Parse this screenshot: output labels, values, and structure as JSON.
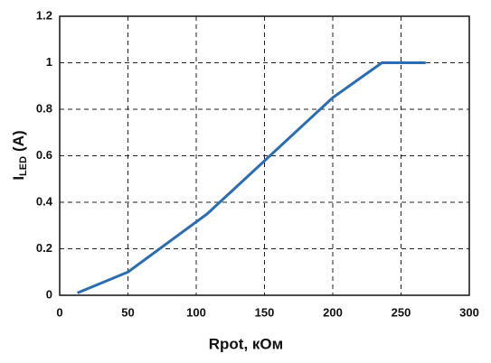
{
  "chart_data": {
    "type": "line",
    "xlabel": "Rpot, кОм",
    "ylabel": "I",
    "ylabel_subscript": "LED",
    "ylabel_unit": "(A)",
    "x": [
      13,
      50,
      108,
      200,
      236,
      268
    ],
    "series": [
      {
        "color": "#2a6db3",
        "values": [
          0.01,
          0.1,
          0.35,
          0.85,
          1.0,
          1.0
        ]
      }
    ],
    "xlim": [
      0,
      300
    ],
    "xticks": [
      0,
      50,
      100,
      150,
      200,
      250,
      300
    ],
    "ylim": [
      0,
      1.2
    ],
    "yticks": [
      0,
      0.2,
      0.4,
      0.6,
      0.8,
      1,
      1.2
    ],
    "grid": true
  }
}
